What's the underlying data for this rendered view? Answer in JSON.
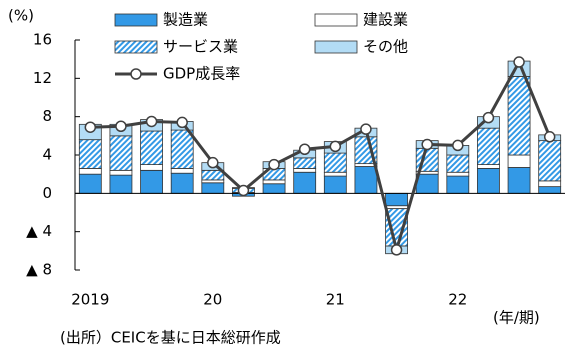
{
  "chart_data": {
    "type": "bar",
    "y_label": "(%)",
    "x_label": "(年/期)",
    "source": "(出所）CEICを基に日本総研作成",
    "categories": [
      "2019",
      null,
      null,
      null,
      "20",
      null,
      null,
      null,
      "21",
      null,
      null,
      null,
      "22",
      null,
      null,
      null
    ],
    "ylim": [
      -8,
      16
    ],
    "yticks": [
      {
        "value": -8,
        "label": "▲ 8"
      },
      {
        "value": -4,
        "label": "▲ 4"
      },
      0,
      4,
      8,
      12,
      16
    ],
    "series": [
      {
        "name": "製造業",
        "color": "#3399e6",
        "values": [
          2.0,
          1.9,
          2.4,
          2.1,
          1.1,
          -0.3,
          1.0,
          2.2,
          1.8,
          2.8,
          -1.3,
          2.0,
          1.8,
          2.6,
          2.7,
          0.7
        ]
      },
      {
        "name": "建設業",
        "color": "#ffffff",
        "values": [
          0.6,
          0.5,
          0.6,
          0.5,
          0.3,
          0.1,
          0.4,
          0.4,
          0.4,
          0.3,
          -0.3,
          0.3,
          0.4,
          0.4,
          1.3,
          0.6
        ]
      },
      {
        "name": "サービス業",
        "color": "#3399e6",
        "pattern": "hatch",
        "values": [
          3.0,
          3.6,
          3.5,
          4.0,
          1.0,
          0.4,
          1.2,
          1.1,
          2.0,
          2.8,
          -3.9,
          2.4,
          1.8,
          3.8,
          8.2,
          4.2
        ]
      },
      {
        "name": "その他",
        "color": "#b3dcf5",
        "values": [
          1.6,
          1.2,
          1.2,
          0.9,
          0.8,
          0.1,
          0.7,
          0.8,
          1.2,
          0.9,
          -0.8,
          0.8,
          1.0,
          1.2,
          1.6,
          0.6
        ]
      },
      {
        "name": "GDP成長率",
        "type": "line",
        "color": "#404040",
        "values": [
          6.9,
          7.0,
          7.5,
          7.4,
          3.2,
          0.3,
          3.0,
          4.6,
          4.9,
          6.7,
          -5.9,
          5.1,
          5.0,
          7.9,
          13.7,
          5.9
        ]
      }
    ]
  }
}
